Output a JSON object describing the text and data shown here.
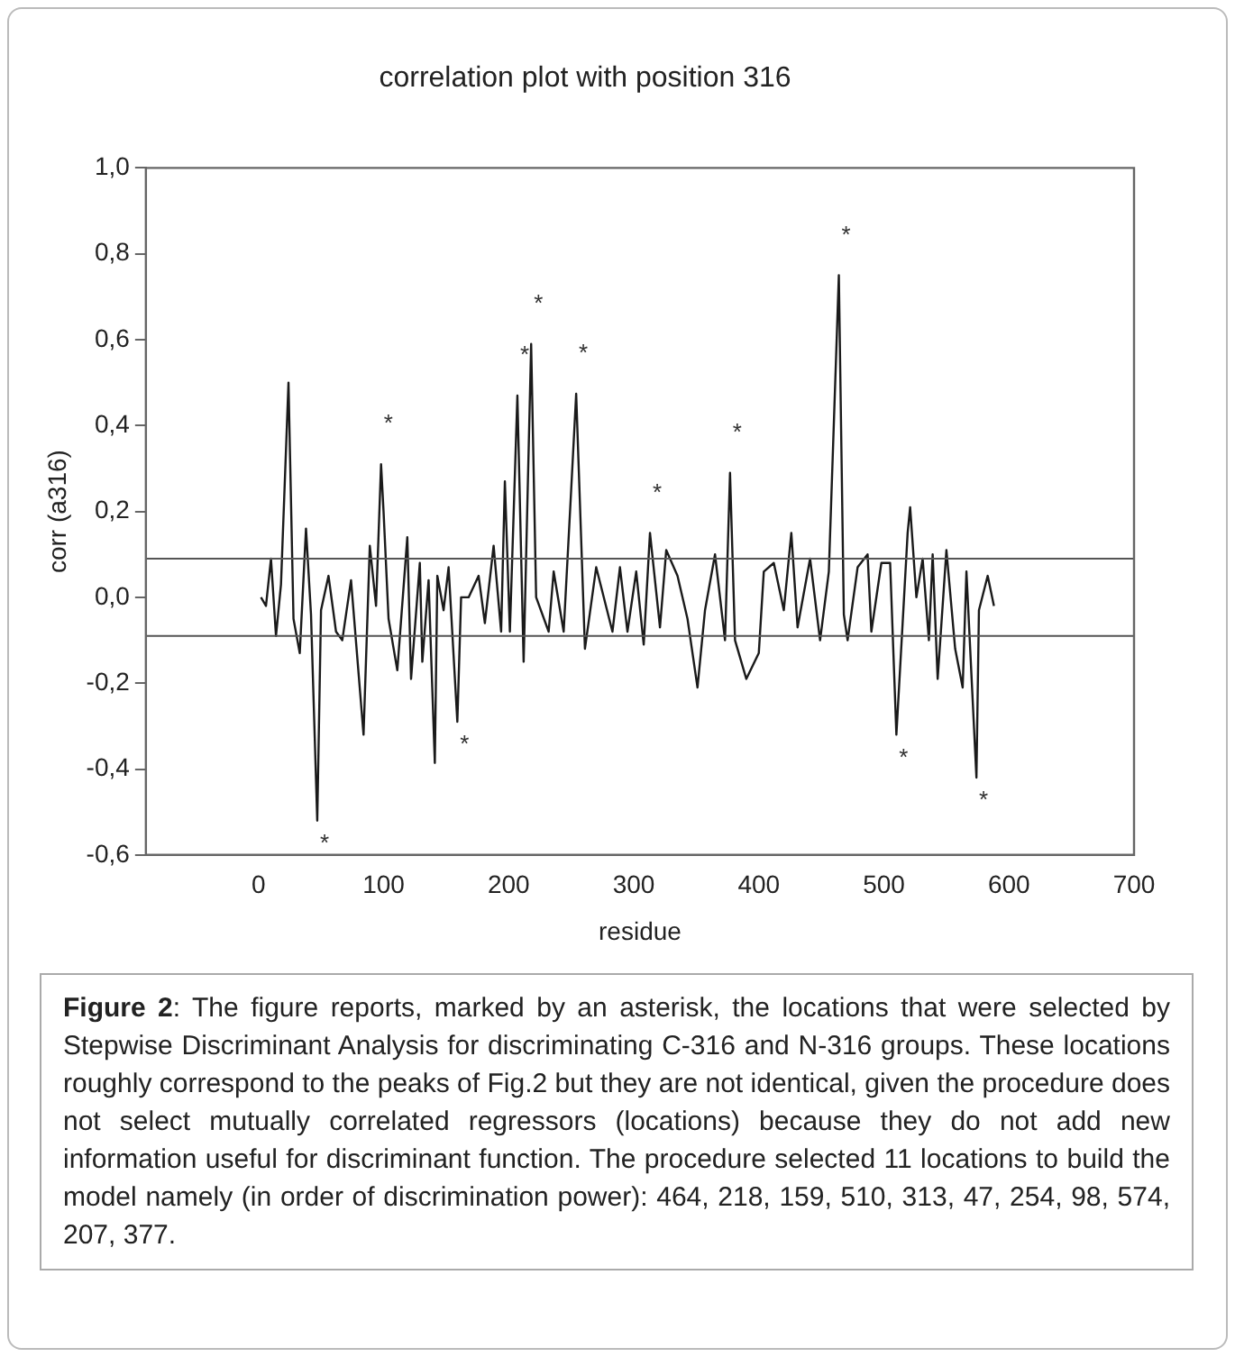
{
  "chart_data": {
    "type": "line",
    "title": "correlation plot with position 316",
    "xlabel": "residue",
    "ylabel": "corr (a316)",
    "xlim": [
      -90,
      700
    ],
    "xticks": [
      0,
      100,
      200,
      300,
      400,
      500,
      600,
      700
    ],
    "ylim": [
      -0.6,
      1.0
    ],
    "yticks": [
      {
        "value": -0.6,
        "label": "-0,6"
      },
      {
        "value": -0.4,
        "label": "-0,4"
      },
      {
        "value": -0.2,
        "label": "-0,2"
      },
      {
        "value": 0,
        "label": "0,0"
      },
      {
        "value": 0.2,
        "label": "0,2"
      },
      {
        "value": 0.4,
        "label": "0,4"
      },
      {
        "value": 0.6,
        "label": "0,6"
      },
      {
        "value": 0.8,
        "label": "0,8"
      },
      {
        "value": 1.0,
        "label": "1,0"
      }
    ],
    "grid": false,
    "legend": false,
    "marker": "none",
    "line_style": "solid",
    "series": [
      {
        "color": "#1a1a1a",
        "x": [
          2,
          6,
          10,
          14,
          18,
          24,
          28,
          33,
          38,
          42,
          47,
          50,
          56,
          62,
          67,
          74,
          84,
          89,
          94,
          98,
          100,
          104,
          111,
          119,
          122,
          129,
          131,
          136,
          141,
          143,
          148,
          152,
          159,
          162,
          168,
          176,
          181,
          188,
          194,
          197,
          201,
          207,
          212,
          218,
          222,
          232,
          236,
          244,
          250,
          254,
          261,
          270,
          283,
          289,
          295,
          302,
          308,
          313,
          321,
          326,
          335,
          343,
          351,
          357,
          365,
          373,
          377,
          381,
          390,
          400,
          404,
          412,
          420,
          426,
          431,
          441,
          449,
          456,
          464,
          468,
          471,
          479,
          487,
          490,
          498,
          505,
          510,
          515,
          519,
          521,
          526,
          531,
          536,
          539,
          543,
          550,
          557,
          563,
          566,
          574,
          576,
          583,
          588
        ],
        "values": [
          0,
          -0.02,
          0.09,
          -0.09,
          0.03,
          0.5,
          -0.05,
          -0.13,
          0.16,
          -0.04,
          -0.52,
          -0.03,
          0.05,
          -0.08,
          -0.1,
          0.04,
          -0.32,
          0.12,
          -0.02,
          0.31,
          0.2,
          -0.05,
          -0.17,
          0.14,
          -0.19,
          0.08,
          -0.15,
          0.04,
          -0.386,
          0.05,
          -0.03,
          0.07,
          -0.29,
          0,
          0,
          0.05,
          -0.06,
          0.12,
          -0.08,
          0.27,
          -0.08,
          0.47,
          -0.15,
          0.59,
          0,
          -0.08,
          0.06,
          -0.08,
          0.25,
          0.474,
          -0.12,
          0.07,
          -0.08,
          0.07,
          -0.08,
          0.06,
          -0.11,
          0.15,
          -0.07,
          0.11,
          0.05,
          -0.05,
          -0.21,
          -0.03,
          0.1,
          -0.1,
          0.29,
          -0.1,
          -0.19,
          -0.13,
          0.06,
          0.08,
          -0.03,
          0.15,
          -0.07,
          0.09,
          -0.1,
          0.06,
          0.75,
          -0.04,
          -0.1,
          0.07,
          0.1,
          -0.08,
          0.08,
          0.08,
          -0.32,
          -0.06,
          0.15,
          0.21,
          0,
          0.09,
          -0.1,
          0.1,
          -0.19,
          0.11,
          -0.12,
          -0.21,
          0.06,
          -0.42,
          -0.03,
          0.05,
          -0.02
        ]
      }
    ],
    "ref_lines": [
      {
        "axis": "y",
        "value": 0.09,
        "color": "#555555"
      },
      {
        "axis": "y",
        "value": -0.09,
        "color": "#555555"
      }
    ],
    "annotations": [
      {
        "text": "*",
        "x": 47,
        "y": -0.52
      },
      {
        "text": "*",
        "x": 98,
        "y": 0.31
      },
      {
        "text": "*",
        "x": 159,
        "y": -0.29
      },
      {
        "text": "*",
        "x": 207,
        "y": 0.47
      },
      {
        "text": "*",
        "x": 218,
        "y": 0.59
      },
      {
        "text": "*",
        "x": 254,
        "y": 0.474
      },
      {
        "text": "*",
        "x": 313,
        "y": 0.15
      },
      {
        "text": "*",
        "x": 377,
        "y": 0.29
      },
      {
        "text": "*",
        "x": 464,
        "y": 0.75
      },
      {
        "text": "*",
        "x": 510,
        "y": -0.32
      },
      {
        "text": "*",
        "x": 574,
        "y": -0.42
      },
      "Figure 2: The figure reports, marked by an asterisk, the locations that were selected by Stepwise Discriminant Analysis for discriminating C-316 and N-316 groups. These locations roughly correspond to the peaks of Fig.2 but they are not identical, given the procedure does not select mutually correlated regressors (locations) because they do not add new information useful for discriminant function. The procedure selected 11 locations to build the model namely (in order of discrimination power): 464, 218, 159, 510, 313, 47, 254, 98, 574, 207, 377."
    ]
  }
}
